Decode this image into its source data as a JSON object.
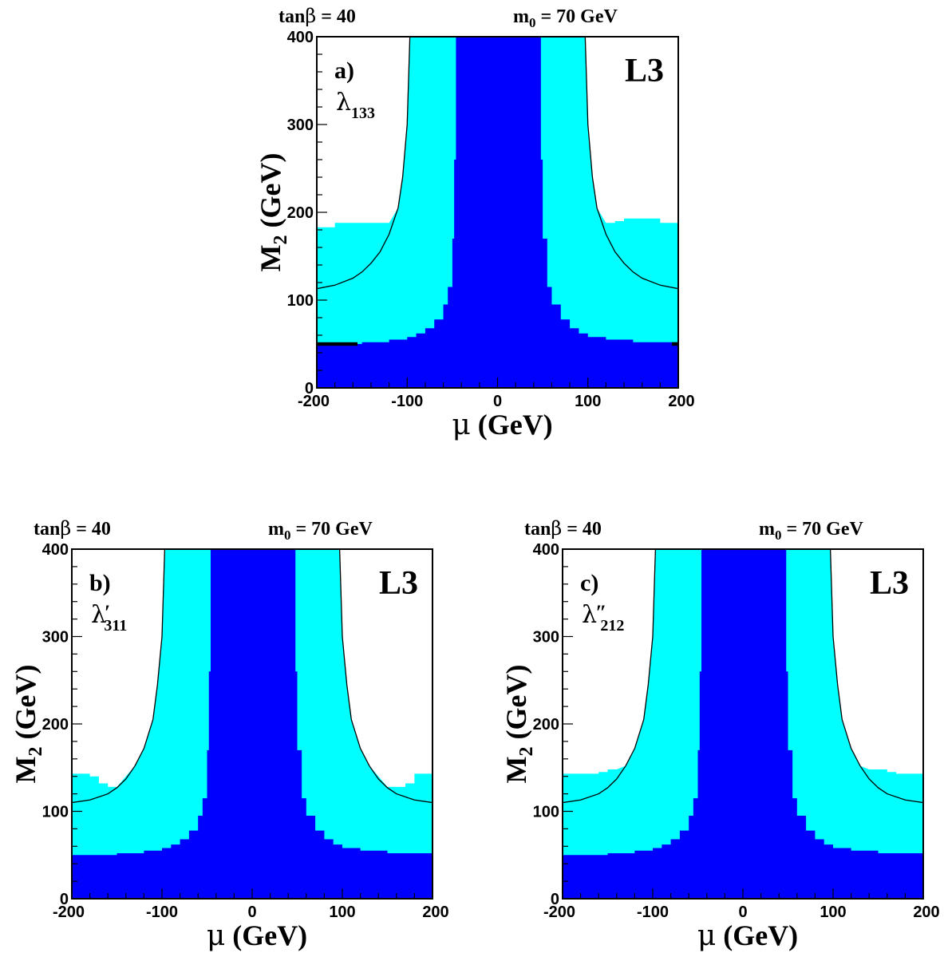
{
  "figure": {
    "panels": [
      "a",
      "b",
      "c"
    ]
  },
  "colors": {
    "excluded_all": "#0000ff",
    "excluded_direct": "#00ffff",
    "band": "#000000",
    "kinematic_limit": "#000000",
    "frame": "#000000",
    "background": "#ffffff"
  },
  "chart_data": [
    {
      "id": "a",
      "type": "area",
      "header": {
        "left": "tanβ = 40",
        "right": "m₀ = 70 GeV",
        "right_text": "m",
        "right_sub": "0",
        "right_tail": " = 70 GeV"
      },
      "panel_label": "a)",
      "coupling": {
        "symbol": "λ",
        "prime": "",
        "subscript": "133"
      },
      "experiment": "L3",
      "xlabel": "μ (GeV)",
      "xlabel_symbol": "μ",
      "xlabel_unit": " (GeV)",
      "ylabel": "M₂ (GeV)",
      "ylabel_main": "M",
      "ylabel_sub": "2",
      "ylabel_unit": " (GeV)",
      "xlim": [
        -200,
        200
      ],
      "ylim": [
        0,
        400
      ],
      "xticks": [
        -200,
        -100,
        0,
        100,
        200
      ],
      "yticks": [
        0,
        100,
        200,
        300,
        400
      ],
      "xtick_labels": [
        "-200",
        "-100",
        "0",
        "100",
        "200"
      ],
      "ytick_labels": [
        "0",
        "100",
        "200",
        "300",
        "400"
      ],
      "series": [
        {
          "role": "kinematic-limit",
          "x": [
            -200,
            -180,
            -160,
            -150,
            -140,
            -130,
            -120,
            -110,
            -105,
            -100,
            -97
          ],
          "y": [
            113,
            117,
            125,
            132,
            142,
            155,
            175,
            205,
            240,
            300,
            400
          ]
        },
        {
          "role": "kinematic-limit",
          "x": [
            97,
            100,
            105,
            110,
            120,
            130,
            140,
            150,
            160,
            180,
            200
          ],
          "y": [
            400,
            300,
            240,
            205,
            175,
            155,
            142,
            132,
            125,
            117,
            113
          ]
        },
        {
          "role": "cyan-outer",
          "x": [
            -200,
            -180,
            -150,
            -140,
            -130,
            -120,
            120,
            130,
            140,
            150,
            180,
            200
          ],
          "y": [
            183,
            188,
            188,
            188,
            188,
            188,
            188,
            190,
            193,
            193,
            188,
            188
          ]
        },
        {
          "role": "blue-core",
          "x": [
            -200,
            -150,
            -120,
            -100,
            -90,
            -80,
            -70,
            -60,
            -55,
            -50,
            -48,
            -46,
            46,
            48,
            50,
            55,
            60,
            70,
            80,
            90,
            100,
            120,
            150,
            200
          ],
          "y": [
            50,
            52,
            55,
            58,
            62,
            68,
            78,
            95,
            115,
            170,
            260,
            400,
            400,
            260,
            170,
            115,
            95,
            78,
            68,
            62,
            58,
            55,
            52,
            50
          ]
        }
      ],
      "black_band": {
        "x": [
          -200,
          -155
        ],
        "y": [
          48,
          52
        ]
      },
      "black_band_right": {
        "x": [
          193,
          200
        ],
        "y": [
          48,
          52
        ]
      }
    },
    {
      "id": "b",
      "type": "area",
      "header": {
        "left": "tanβ = 40",
        "right": "m₀ = 70 GeV",
        "right_text": "m",
        "right_sub": "0",
        "right_tail": " = 70 GeV"
      },
      "panel_label": "b)",
      "coupling": {
        "symbol": "λ",
        "prime": "′",
        "subscript": "311"
      },
      "experiment": "L3",
      "xlabel": "μ (GeV)",
      "xlabel_symbol": "μ",
      "xlabel_unit": " (GeV)",
      "ylabel": "M₂ (GeV)",
      "ylabel_main": "M",
      "ylabel_sub": "2",
      "ylabel_unit": " (GeV)",
      "xlim": [
        -200,
        200
      ],
      "ylim": [
        0,
        400
      ],
      "xticks": [
        -200,
        -100,
        0,
        100,
        200
      ],
      "yticks": [
        0,
        100,
        200,
        300,
        400
      ],
      "xtick_labels": [
        "-200",
        "-100",
        "0",
        "100",
        "200"
      ],
      "ytick_labels": [
        "0",
        "100",
        "200",
        "300",
        "400"
      ],
      "series": [
        {
          "role": "kinematic-limit",
          "x": [
            -200,
            -180,
            -160,
            -150,
            -140,
            -130,
            -120,
            -110,
            -105,
            -100,
            -97
          ],
          "y": [
            110,
            113,
            120,
            127,
            137,
            152,
            172,
            205,
            245,
            300,
            400
          ]
        },
        {
          "role": "kinematic-limit",
          "x": [
            97,
            100,
            105,
            110,
            120,
            130,
            140,
            150,
            160,
            180,
            200
          ],
          "y": [
            400,
            300,
            245,
            205,
            172,
            152,
            137,
            127,
            120,
            113,
            110
          ]
        },
        {
          "role": "cyan-outer",
          "x": [
            -200,
            -180,
            -170,
            -160,
            -150,
            150,
            160,
            170,
            180,
            200
          ],
          "y": [
            143,
            140,
            132,
            128,
            128,
            128,
            128,
            132,
            143,
            143
          ]
        },
        {
          "role": "blue-core",
          "x": [
            -200,
            -150,
            -120,
            -100,
            -90,
            -80,
            -70,
            -60,
            -55,
            -50,
            -48,
            -46,
            46,
            48,
            50,
            55,
            60,
            70,
            80,
            90,
            100,
            120,
            150,
            200
          ],
          "y": [
            50,
            52,
            55,
            58,
            62,
            68,
            78,
            95,
            115,
            170,
            260,
            400,
            400,
            260,
            170,
            115,
            95,
            78,
            68,
            62,
            58,
            55,
            52,
            50
          ]
        }
      ]
    },
    {
      "id": "c",
      "type": "area",
      "header": {
        "left": "tanβ = 40",
        "right": "m₀ = 70 GeV",
        "right_text": "m",
        "right_sub": "0",
        "right_tail": " = 70 GeV"
      },
      "panel_label": "c)",
      "coupling": {
        "symbol": "λ",
        "prime": "″",
        "subscript": "212"
      },
      "experiment": "L3",
      "xlabel": "μ (GeV)",
      "xlabel_symbol": "μ",
      "xlabel_unit": " (GeV)",
      "ylabel": "M₂ (GeV)",
      "ylabel_main": "M",
      "ylabel_sub": "2",
      "ylabel_unit": " (GeV)",
      "xlim": [
        -200,
        200
      ],
      "ylim": [
        0,
        400
      ],
      "xticks": [
        -200,
        -100,
        0,
        100,
        200
      ],
      "yticks": [
        0,
        100,
        200,
        300,
        400
      ],
      "xtick_labels": [
        "-200",
        "-100",
        "0",
        "100",
        "200"
      ],
      "ytick_labels": [
        "0",
        "100",
        "200",
        "300",
        "400"
      ],
      "series": [
        {
          "role": "kinematic-limit",
          "x": [
            -200,
            -180,
            -160,
            -150,
            -140,
            -130,
            -120,
            -110,
            -105,
            -100,
            -97
          ],
          "y": [
            110,
            113,
            120,
            127,
            137,
            152,
            172,
            205,
            245,
            300,
            400
          ]
        },
        {
          "role": "kinematic-limit",
          "x": [
            97,
            100,
            105,
            110,
            120,
            130,
            140,
            150,
            160,
            180,
            200
          ],
          "y": [
            400,
            300,
            245,
            205,
            172,
            152,
            137,
            127,
            120,
            113,
            110
          ]
        },
        {
          "role": "cyan-outer",
          "x": [
            -200,
            -180,
            -160,
            -150,
            -140,
            140,
            150,
            160,
            170,
            180,
            200
          ],
          "y": [
            143,
            143,
            145,
            148,
            148,
            148,
            148,
            145,
            143,
            143,
            143
          ]
        },
        {
          "role": "blue-core",
          "x": [
            -200,
            -150,
            -120,
            -100,
            -90,
            -80,
            -70,
            -60,
            -55,
            -50,
            -48,
            -46,
            46,
            48,
            50,
            55,
            60,
            70,
            80,
            90,
            100,
            120,
            150,
            200
          ],
          "y": [
            50,
            52,
            55,
            58,
            62,
            68,
            78,
            95,
            115,
            170,
            260,
            400,
            400,
            260,
            170,
            115,
            95,
            78,
            68,
            62,
            58,
            55,
            52,
            50
          ]
        }
      ]
    }
  ]
}
